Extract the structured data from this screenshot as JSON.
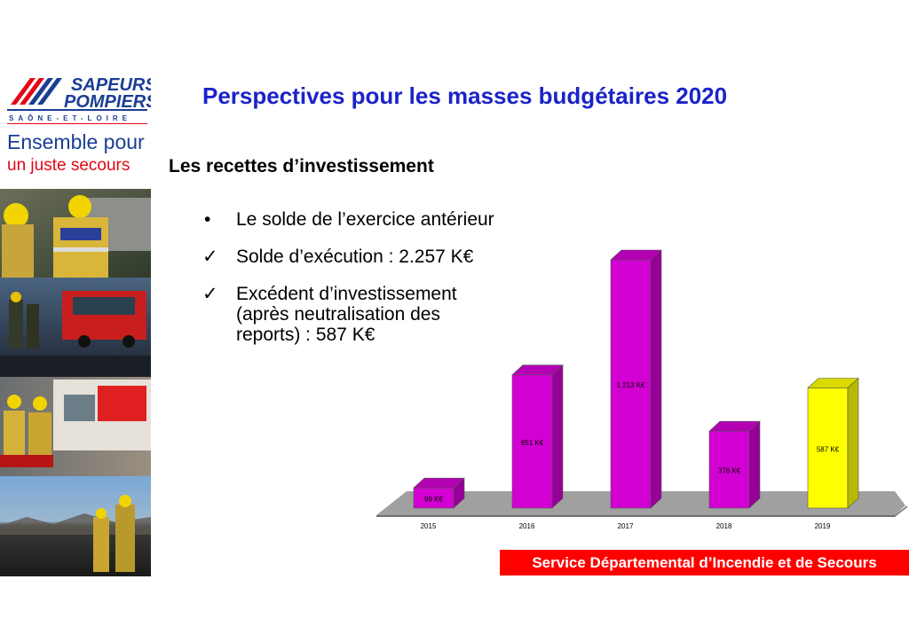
{
  "header": {
    "logo_line1": "SAPEURS",
    "logo_line2": "POMPIERS",
    "logo_line3": "SAÔNE-ET-LOIRE",
    "logo_tagline1": "Ensemble pour",
    "logo_tagline2": "un juste secours"
  },
  "slide": {
    "title": "Perspectives pour les masses budgétaires 2020",
    "subtitle": "Les recettes d’investissement",
    "bullets": [
      {
        "mark": "•",
        "text": "Le solde de l’exercice antérieur"
      },
      {
        "mark": "✓",
        "text": "Solde d’exécution : 2.257 K€"
      },
      {
        "mark": "✓",
        "text": "Excédent d’investissement (après neutralisation des reports) : 587 K€"
      }
    ]
  },
  "footer": {
    "text": "Service Départemental d’Incendie et de Secours"
  },
  "colors": {
    "bar": "#d200d2",
    "highlight": "#ffff00",
    "floor": "#a0a0a0",
    "title": "#1a23c8",
    "footer": "#ff0000"
  },
  "chart_data": {
    "type": "bar",
    "categories": [
      "2015",
      "2016",
      "2017",
      "2018",
      "2019"
    ],
    "values": [
      99,
      651,
      1213,
      376,
      587
    ],
    "data_labels": [
      "99 K€",
      "651 K€",
      "1 213 K€",
      "376 K€",
      "587 K€"
    ],
    "highlight_index": 4,
    "grid": false,
    "legend": "none"
  }
}
